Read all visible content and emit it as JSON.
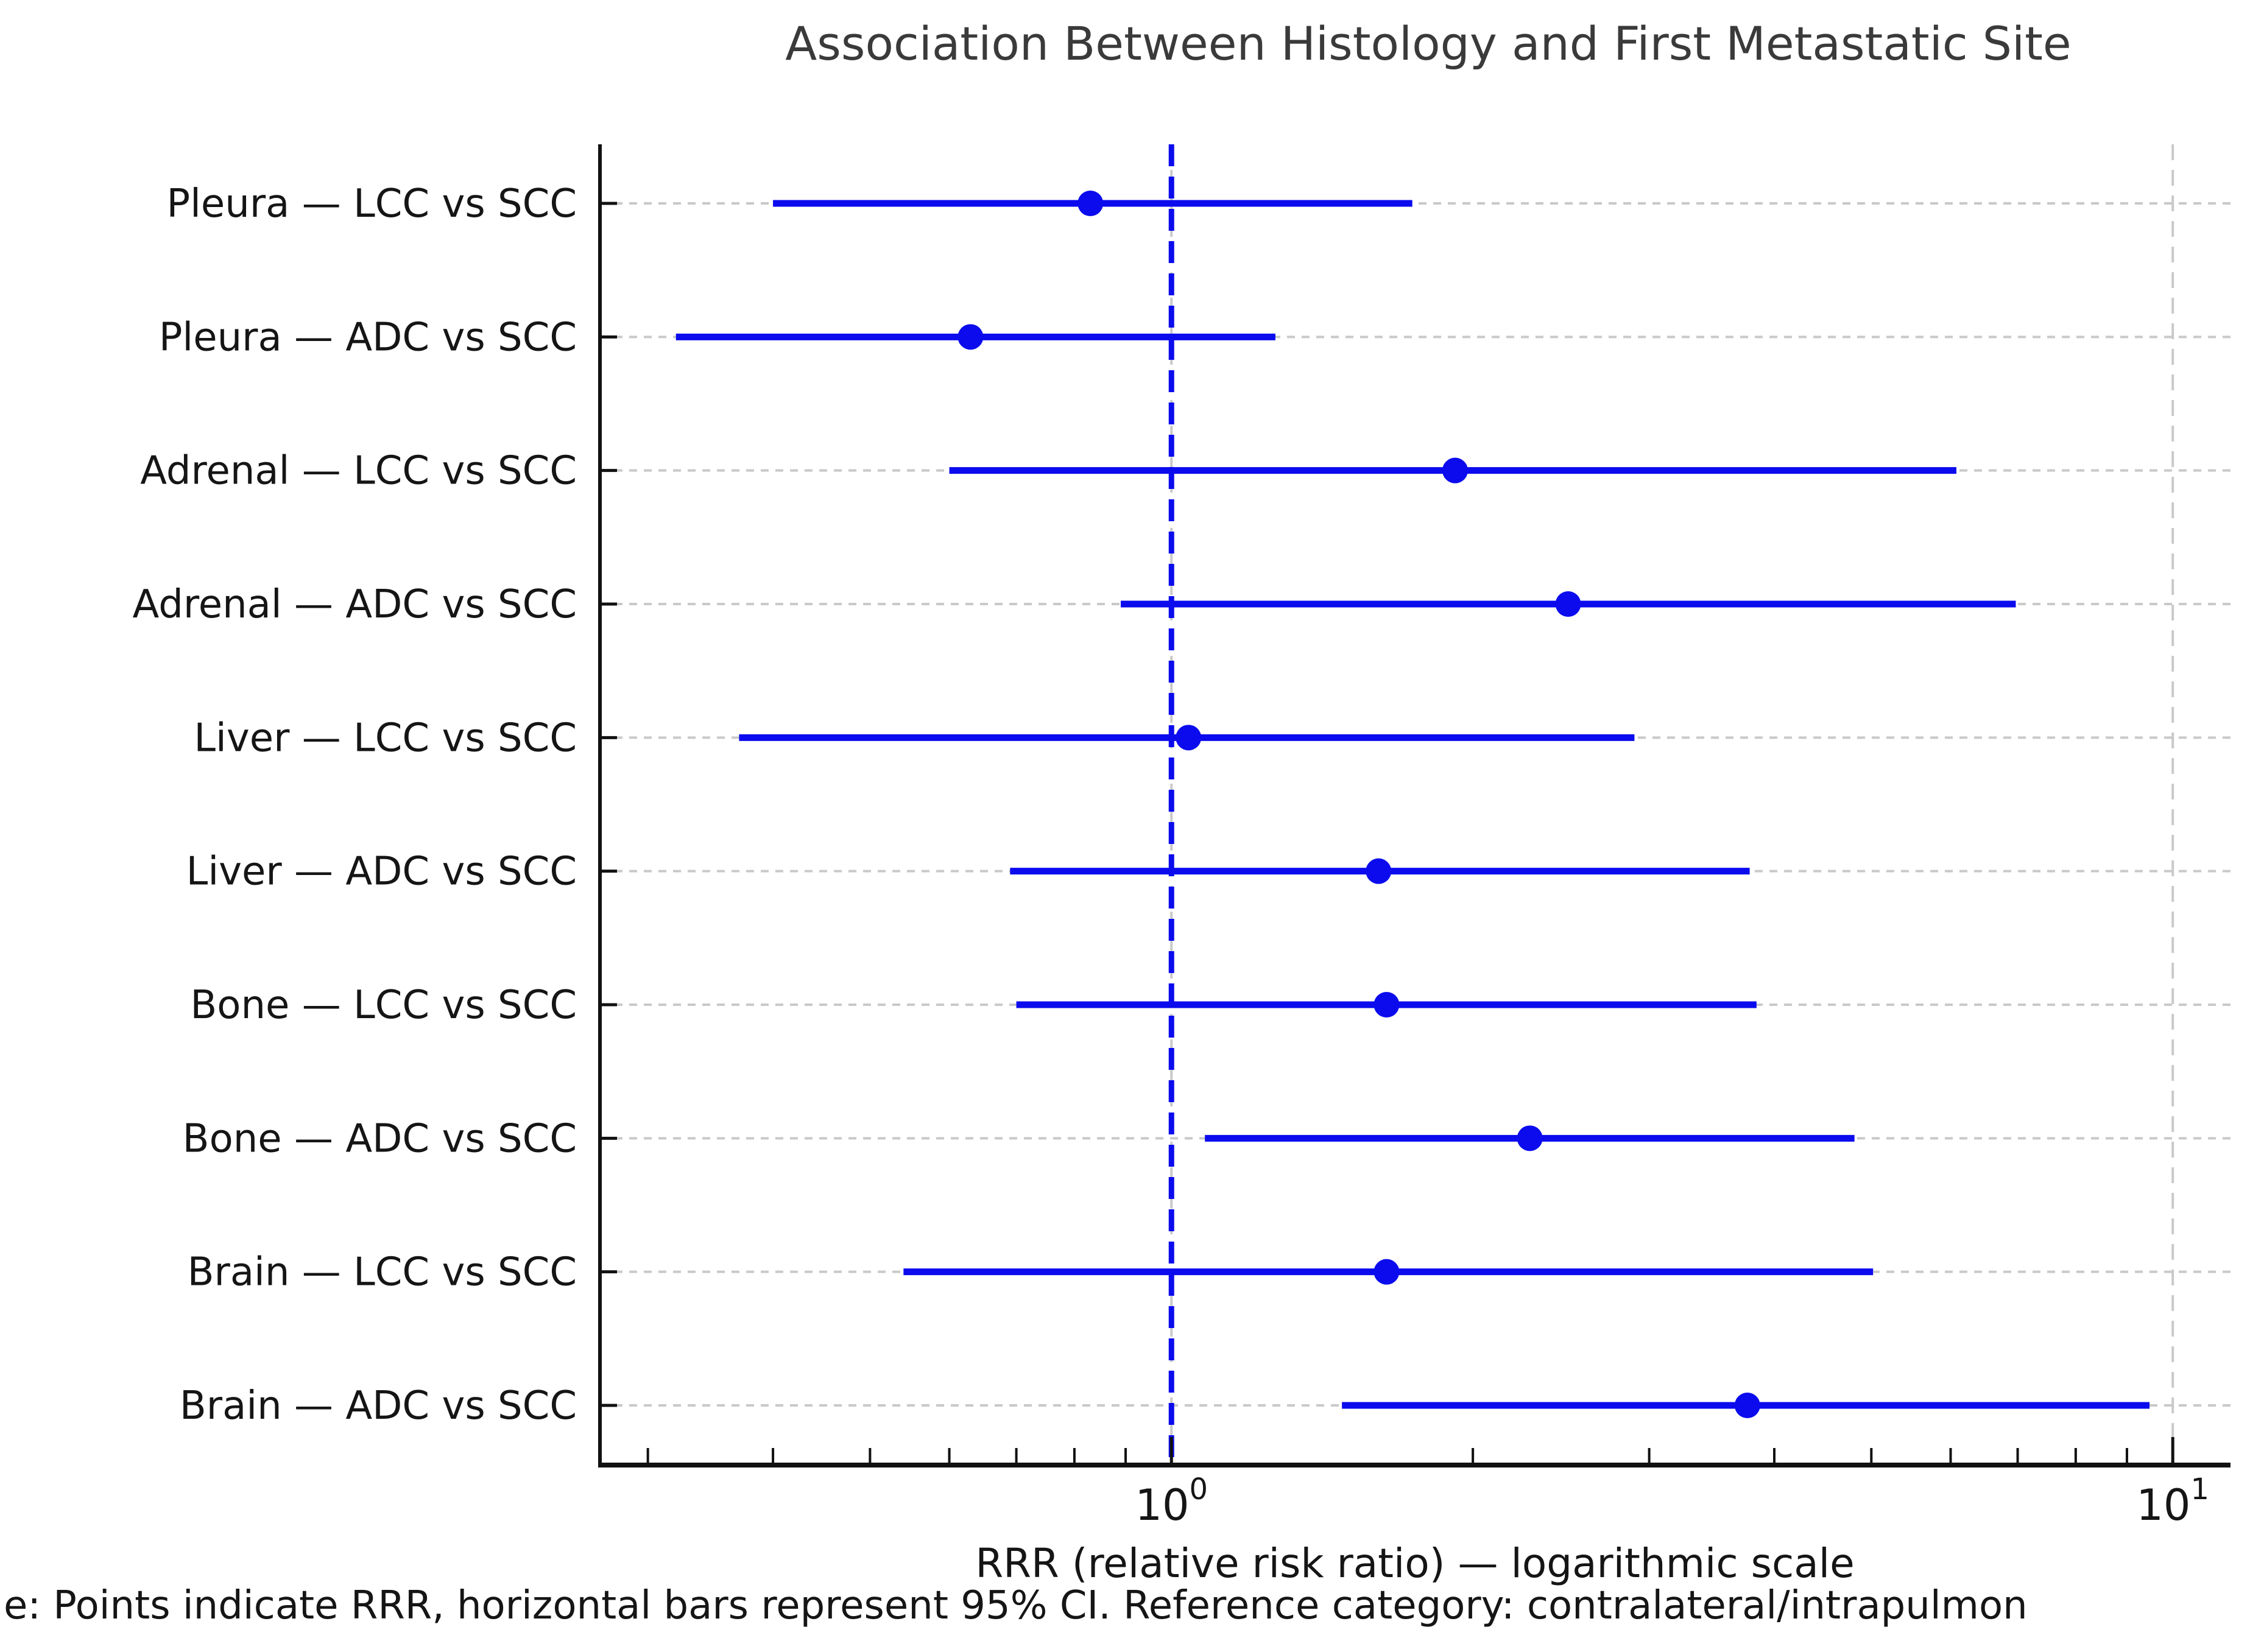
{
  "chart_data": {
    "type": "scatter",
    "variant": "forest-plot",
    "title": "Association Between Histology and First Metastatic Site",
    "xlabel": "RRR (relative risk ratio) — logarithmic scale",
    "footnote": "e: Points indicate RRR, horizontal bars represent 95% CI. Reference category: contralateral/intrapulmon",
    "x_scale": "log10",
    "xlim": [
      0.2687,
      11.42
    ],
    "x_major_ticks": [
      {
        "value": 1,
        "base": "10",
        "exp": "0"
      },
      {
        "value": 10,
        "base": "10",
        "exp": "1"
      }
    ],
    "x_minor_ticks": [
      0.3,
      0.4,
      0.5,
      0.6,
      0.7,
      0.8,
      0.9,
      2,
      3,
      4,
      5,
      6,
      7,
      8,
      9
    ],
    "reference_line": {
      "value": 1.0,
      "style": "dashed"
    },
    "rows": [
      {
        "label": "Pleura — LCC vs SCC",
        "rrr": 0.83,
        "ci_low": 0.4,
        "ci_high": 1.74
      },
      {
        "label": "Pleura — ADC vs SCC",
        "rrr": 0.63,
        "ci_low": 0.32,
        "ci_high": 1.27
      },
      {
        "label": "Adrenal — LCC vs SCC",
        "rrr": 1.92,
        "ci_low": 0.6,
        "ci_high": 6.08
      },
      {
        "label": "Adrenal — ADC vs SCC",
        "rrr": 2.49,
        "ci_low": 0.89,
        "ci_high": 6.97
      },
      {
        "label": "Liver — LCC vs SCC",
        "rrr": 1.04,
        "ci_low": 0.37,
        "ci_high": 2.9
      },
      {
        "label": "Liver — ADC vs SCC",
        "rrr": 1.61,
        "ci_low": 0.69,
        "ci_high": 3.78
      },
      {
        "label": "Bone — LCC vs SCC",
        "rrr": 1.64,
        "ci_low": 0.7,
        "ci_high": 3.84
      },
      {
        "label": "Bone — ADC vs SCC",
        "rrr": 2.28,
        "ci_low": 1.08,
        "ci_high": 4.81
      },
      {
        "label": "Brain — LCC vs SCC",
        "rrr": 1.64,
        "ci_low": 0.54,
        "ci_high": 5.02
      },
      {
        "label": "Brain — ADC vs SCC",
        "rrr": 3.76,
        "ci_low": 1.48,
        "ci_high": 9.48
      }
    ],
    "grid": {
      "horizontal": "dashed-per-row",
      "vertical": "dashed-at-major-ticks"
    },
    "legend": "none",
    "colors": {
      "series": "#0b0bee",
      "reference_line": "#0b0bee",
      "grid": "#c9c9c9",
      "spine": "#111111",
      "title": "#3a3a3a",
      "text": "#151515",
      "background": "#ffffff"
    }
  }
}
